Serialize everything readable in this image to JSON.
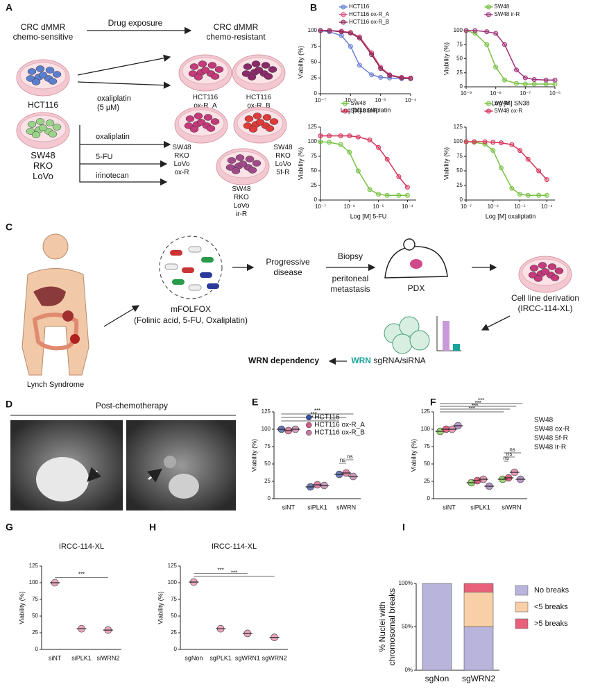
{
  "panel_labels": [
    "A",
    "B",
    "C",
    "D",
    "E",
    "F",
    "G",
    "H",
    "I"
  ],
  "panel_a": {
    "sensitive": [
      "CRC dMMR",
      "chemo-sensitive"
    ],
    "drug_exposure": "Drug exposure",
    "resistant": [
      "CRC dMMR",
      "chemo-resistant"
    ],
    "hct116": "HCT116",
    "oxaliplatin_dose": [
      "oxaliplatin",
      "(5 µM)"
    ],
    "hct_a": [
      "HCT116",
      "ox-R_A"
    ],
    "hct_b": [
      "HCT116",
      "ox-R_B"
    ],
    "lines": [
      "SW48",
      "RKO",
      "LoVo"
    ],
    "drugs": [
      "oxaliplatin",
      "5-FU",
      "irinotecan"
    ],
    "ox_r": [
      "SW48",
      "RKO",
      "LoVo",
      "ox-R"
    ],
    "f_r": [
      "SW48",
      "RKO",
      "LoVo",
      "5f-R"
    ],
    "ir_r": [
      "SW48",
      "RKO",
      "LoVo",
      "ir-R"
    ]
  },
  "panel_c": {
    "patient": "Lynch Syndrome",
    "regimen": "mFOLFOX",
    "regimen_detail": "(Folinic acid, 5-FU, Oxaliplatin)",
    "progression": [
      "Progressive",
      "disease"
    ],
    "biopsy": "Biopsy",
    "site": [
      "peritoneal",
      "metastasis"
    ],
    "pdx": "PDX",
    "derivation": [
      "Cell line derivation",
      "(IRCC-114-XL)"
    ],
    "gene": "WRN",
    "method": "sgRNA/siRNA",
    "outcome": "WRN dependency"
  },
  "panel_d": {
    "title": "Post-chemotherapy"
  },
  "chart_data": [
    {
      "type": "line",
      "xlabel": "Log [M] oxaliplatin",
      "ylabel": "Viability (%)",
      "xscale": "log",
      "xlim": [
        1e-07,
        0.0001
      ],
      "xticks": [
        {
          "value": 1e-07,
          "label": "10⁻⁷"
        },
        {
          "value": 1e-06,
          "label": "10⁻⁶"
        },
        {
          "value": 1e-05,
          "label": "10⁻⁵"
        },
        {
          "value": 0.0001,
          "label": "10⁻⁴"
        }
      ],
      "ylim": [
        0,
        100
      ],
      "yticks": [
        0,
        25,
        50,
        75,
        100
      ],
      "legend": "above",
      "x": [
        1e-07,
        2e-07,
        5e-07,
        1e-06,
        2e-06,
        5e-06,
        1e-05,
        2e-05,
        5e-05,
        0.0001
      ],
      "series": [
        {
          "name": "HCT116",
          "color": "#6a7fd6",
          "values": [
            100,
            98,
            92,
            75,
            45,
            30,
            26,
            25,
            24,
            24
          ]
        },
        {
          "name": "HCT116 ox-R_A",
          "color": "#d64a7a",
          "values": [
            100,
            100,
            99,
            97,
            90,
            65,
            42,
            30,
            26,
            25
          ]
        },
        {
          "name": "HCT116 ox-R_B",
          "color": "#8b2a5a",
          "values": [
            100,
            100,
            98,
            96,
            88,
            62,
            40,
            29,
            25,
            24
          ]
        }
      ]
    },
    {
      "type": "line",
      "xlabel": "Log [M] SN38",
      "ylabel": "Viability (%)",
      "xscale": "log",
      "xlim": [
        1e-09,
        1e-06
      ],
      "xticks": [
        {
          "value": 1e-09,
          "label": "10⁻⁹"
        },
        {
          "value": 1e-08,
          "label": "10⁻⁸"
        },
        {
          "value": 1e-07,
          "label": "10⁻⁷"
        },
        {
          "value": 1e-06,
          "label": "10⁻⁶"
        }
      ],
      "ylim": [
        0,
        100
      ],
      "yticks": [
        0,
        25,
        50,
        75,
        100
      ],
      "legend": "above",
      "x": [
        1e-09,
        2e-09,
        5e-09,
        1e-08,
        2e-08,
        5e-08,
        1e-07,
        2e-07,
        5e-07,
        1e-06
      ],
      "series": [
        {
          "name": "SW48",
          "color": "#7ac143",
          "values": [
            100,
            95,
            75,
            35,
            12,
            6,
            5,
            5,
            5,
            5
          ]
        },
        {
          "name": "SW48 ir-R",
          "color": "#a0307a",
          "values": [
            100,
            100,
            98,
            95,
            75,
            30,
            16,
            13,
            12,
            12
          ]
        }
      ]
    },
    {
      "type": "line",
      "xlabel": "Log [M] 5-FU",
      "ylabel": "Viability (%)",
      "xscale": "log",
      "xlim": [
        1e-07,
        0.0002
      ],
      "xticks": [
        {
          "value": 1e-07,
          "label": "10⁻⁷"
        },
        {
          "value": 1e-06,
          "label": "10⁻⁶"
        },
        {
          "value": 1e-05,
          "label": "10⁻⁵"
        },
        {
          "value": 0.0001,
          "label": "10⁻⁴"
        }
      ],
      "ylim": [
        0,
        125
      ],
      "yticks": [
        0,
        25,
        50,
        75,
        100,
        125
      ],
      "legend": "above",
      "x": [
        1e-07,
        2e-07,
        5e-07,
        1e-06,
        2e-06,
        5e-06,
        1e-05,
        2e-05,
        5e-05,
        0.0001
      ],
      "series": [
        {
          "name": "SW48",
          "color": "#7ac143",
          "values": [
            100,
            99,
            95,
            82,
            50,
            18,
            10,
            8,
            8,
            8
          ]
        },
        {
          "name": "SW48 5f-R",
          "color": "#d6335a",
          "values": [
            110,
            110,
            110,
            110,
            108,
            103,
            90,
            70,
            40,
            22
          ]
        }
      ]
    },
    {
      "type": "line",
      "xlabel": "Log [M] oxaliplatin",
      "ylabel": "Viability (%)",
      "xscale": "log",
      "xlim": [
        1e-07,
        0.0002
      ],
      "xticks": [
        {
          "value": 1e-07,
          "label": "10⁻⁷"
        },
        {
          "value": 1e-06,
          "label": "10⁻⁶"
        },
        {
          "value": 1e-05,
          "label": "10⁻⁵"
        },
        {
          "value": 0.0001,
          "label": "10⁻⁴"
        }
      ],
      "ylim": [
        0,
        125
      ],
      "yticks": [
        0,
        25,
        50,
        75,
        100,
        125
      ],
      "legend": "above",
      "x": [
        1e-07,
        2e-07,
        5e-07,
        1e-06,
        2e-06,
        5e-06,
        1e-05,
        2e-05,
        5e-05,
        0.0001
      ],
      "series": [
        {
          "name": "SW48",
          "color": "#7ac143",
          "values": [
            100,
            99,
            96,
            85,
            55,
            20,
            10,
            8,
            8,
            8
          ]
        },
        {
          "name": "SW48 ox-R",
          "color": "#d6335a",
          "values": [
            100,
            100,
            100,
            99,
            98,
            95,
            85,
            70,
            50,
            35
          ]
        }
      ]
    },
    {
      "type": "dot",
      "ylabel": "Viability (%)",
      "categories": [
        "siNT",
        "siPLK1",
        "siWRN"
      ],
      "ylim": [
        0,
        125
      ],
      "yticks": [
        0,
        25,
        50,
        75,
        100,
        125
      ],
      "legend": "upper right",
      "annotations": [
        "***",
        "***",
        "***",
        "ns",
        "ns"
      ],
      "series": [
        {
          "name": "HCT116",
          "color": "#3a4fa0",
          "values": [
            100,
            17,
            35
          ]
        },
        {
          "name": "HCT116 ox-R_A",
          "color": "#d45a8a",
          "values": [
            98,
            20,
            37
          ]
        },
        {
          "name": "HCT116 ox-R_B",
          "color": "#c07aa8",
          "values": [
            100,
            19,
            32
          ]
        }
      ]
    },
    {
      "type": "dot",
      "ylabel": "Viability (%)",
      "categories": [
        "siNT",
        "siPLK1",
        "siWRN"
      ],
      "ylim": [
        0,
        125
      ],
      "yticks": [
        0,
        25,
        50,
        75,
        100,
        125
      ],
      "legend": "outside right",
      "annotations": [
        "***",
        "***",
        "***",
        "***",
        "ns",
        "ns",
        "ns"
      ],
      "series": [
        {
          "name": "SW48",
          "color": "#7ac143",
          "values": [
            97,
            23,
            28
          ]
        },
        {
          "name": "SW48 ox-R",
          "color": "#d6335a",
          "values": [
            100,
            26,
            30
          ]
        },
        {
          "name": "SW48 5f-R",
          "color": "#e07aa0",
          "values": [
            100,
            28,
            38
          ]
        },
        {
          "name": "SW48 ir-R",
          "color": "#a070b8",
          "values": [
            105,
            18,
            28
          ]
        }
      ]
    },
    {
      "type": "dot",
      "title": "IRCC-114-XL",
      "ylabel": "Viability (%)",
      "categories": [
        "siNT",
        "siPLK1",
        "siWRN2"
      ],
      "ylim": [
        0,
        125
      ],
      "yticks": [
        0,
        25,
        50,
        75,
        100,
        125
      ],
      "annotations": [
        "***"
      ],
      "color": "#e88aa8",
      "values": [
        100,
        31,
        29
      ]
    },
    {
      "type": "dot",
      "title": "IRCC-114-XL",
      "ylabel": "Viability (%)",
      "categories": [
        "sgNon",
        "sgPLK1",
        "sgWRN1",
        "sgWRN2"
      ],
      "ylim": [
        0,
        125
      ],
      "yticks": [
        0,
        25,
        50,
        75,
        100,
        125
      ],
      "annotations": [
        "***",
        "***"
      ],
      "color": "#e88aa8",
      "values": [
        101,
        31,
        24,
        18
      ]
    },
    {
      "type": "stacked_bar",
      "ylabel": [
        "% Nuclei with",
        "chromosomal breaks"
      ],
      "categories": [
        "sgNon",
        "sgWRN2"
      ],
      "ylim": [
        0,
        100
      ],
      "yticks": [
        {
          "value": 0,
          "label": "0%"
        },
        {
          "value": 50,
          "label": "50%"
        },
        {
          "value": 100,
          "label": "100%"
        }
      ],
      "legend": "outside right",
      "series": [
        {
          "name": "No breaks",
          "color": "#b8b4dc",
          "values": [
            100,
            50
          ]
        },
        {
          "name": "<5 breaks",
          "color": "#f9cfa8",
          "values": [
            0,
            40
          ]
        },
        {
          "name": ">5 breaks",
          "color": "#e8607a",
          "values": [
            0,
            10
          ]
        }
      ]
    }
  ]
}
